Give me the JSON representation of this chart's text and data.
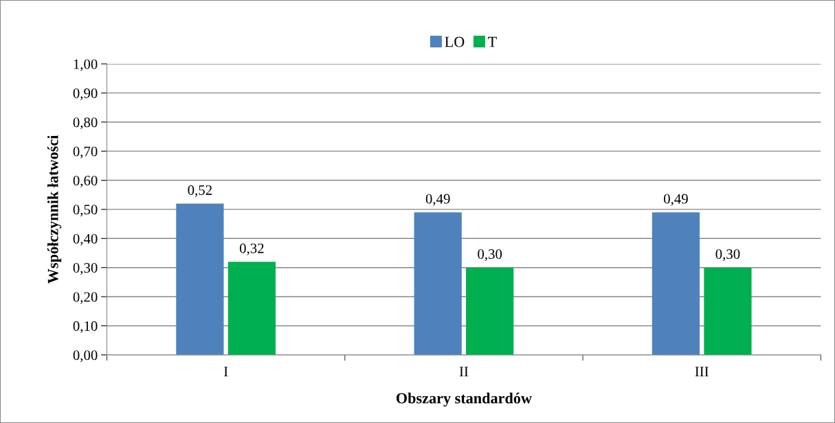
{
  "chart_data": {
    "type": "bar",
    "xlabel": "Obszary standardów",
    "ylabel": "Współczynnik łatwości",
    "categories": [
      "I",
      "II",
      "III"
    ],
    "series": [
      {
        "name": "LO",
        "color": "#4f81bd",
        "values": [
          0.52,
          0.49,
          0.49
        ],
        "value_labels": [
          "0,52",
          "0,49",
          "0,49"
        ]
      },
      {
        "name": "T",
        "color": "#00b050",
        "values": [
          0.32,
          0.3,
          0.3
        ],
        "value_labels": [
          "0,32",
          "0,30",
          "0,30"
        ]
      }
    ],
    "ylim": [
      0,
      1
    ],
    "yticks": [
      {
        "value": 0,
        "label": "0,00"
      },
      {
        "value": 0.1,
        "label": "0,10"
      },
      {
        "value": 0.2,
        "label": "0,20"
      },
      {
        "value": 0.3,
        "label": "0,30"
      },
      {
        "value": 0.4,
        "label": "0,40"
      },
      {
        "value": 0.5,
        "label": "0,50"
      },
      {
        "value": 0.6,
        "label": "0,60"
      },
      {
        "value": 0.7,
        "label": "0,70"
      },
      {
        "value": 0.8,
        "label": "0,80"
      },
      {
        "value": 0.9,
        "label": "0,90"
      },
      {
        "value": 1,
        "label": "1,00"
      }
    ],
    "grid": "y",
    "legend": "top"
  }
}
